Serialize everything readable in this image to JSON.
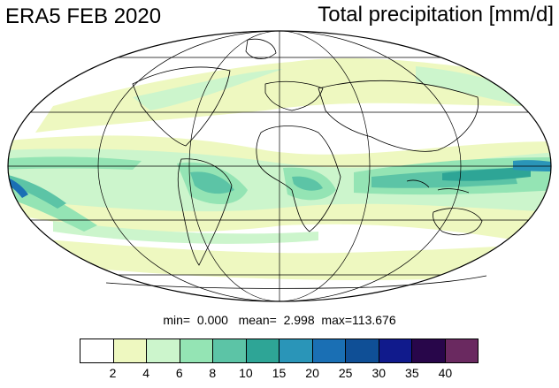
{
  "header": {
    "left_title": "ERA5 FEB 2020",
    "right_title": "Total precipitation [mm/d]"
  },
  "map": {
    "projection": "mollweide",
    "variable": "Total precipitation",
    "units": "mm/d",
    "period": "FEB 2020",
    "dataset": "ERA5",
    "graticule": true,
    "coastlines": true
  },
  "stats": {
    "min_label": "min=",
    "min_value": "0.000",
    "mean_label": "mean=",
    "mean_value": "2.998",
    "max_label": "max=",
    "max_value": "113.676"
  },
  "colorbar": {
    "colors": [
      "#ffffff",
      "#eef8c0",
      "#ccf5cc",
      "#94e4b4",
      "#5cc4a6",
      "#2ea596",
      "#2a95b8",
      "#1a6fb4",
      "#0f4f96",
      "#101a8c",
      "#28064a",
      "#6a2960"
    ],
    "labels": [
      "2",
      "4",
      "6",
      "8",
      "10",
      "15",
      "20",
      "25",
      "30",
      "35",
      "40"
    ]
  }
}
